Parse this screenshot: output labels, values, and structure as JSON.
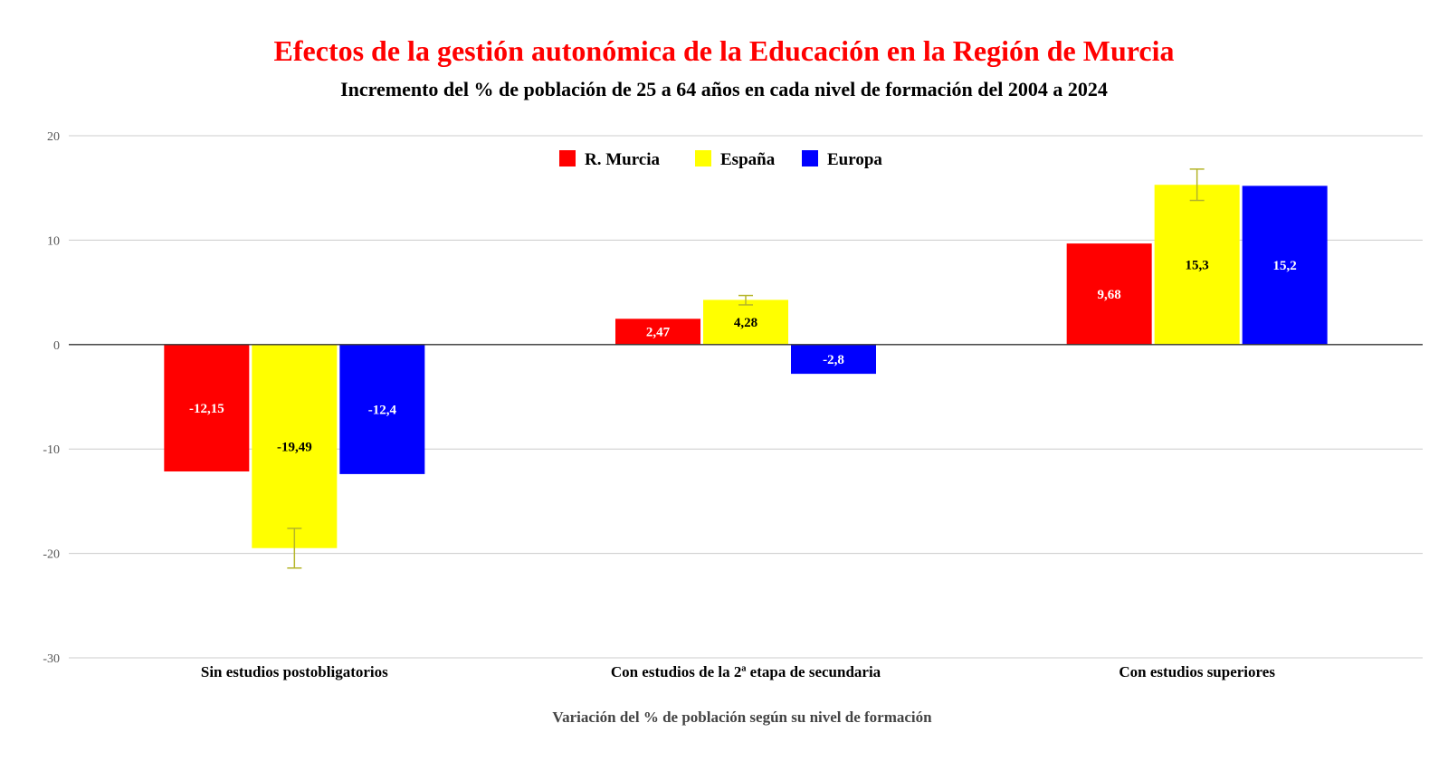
{
  "chart_data": {
    "type": "bar",
    "title": "Efectos de la gestión autonómica de la Educación en la Región de Murcia",
    "subtitle": "Incremento del % de población de 25 a 64 años en cada nivel de formación del 2004 a 2024",
    "xlabel": "Variación del % de población según su nivel de formación",
    "ylabel": "",
    "ylim": [
      -30,
      20
    ],
    "yticks": [
      20,
      10,
      0,
      -10,
      -20,
      -30
    ],
    "grid": true,
    "legend_position": "top-center",
    "categories": [
      "Sin estudios postobligatorios",
      "Con estudios de la 2ª etapa de secundaria",
      "Con estudios superiores"
    ],
    "series": [
      {
        "name": "R. Murcia",
        "color": "#ff0000",
        "label_color": "#ffffff",
        "values": [
          -12.15,
          2.47,
          9.68
        ],
        "labels": [
          "-12,15",
          "2,47",
          "9,68"
        ]
      },
      {
        "name": "España",
        "color": "#ffff00",
        "label_color": "#000000",
        "values": [
          -19.49,
          4.28,
          15.3
        ],
        "labels": [
          "-19,49",
          "4,28",
          "15,3"
        ],
        "error_bars": [
          [
            -21.4,
            -17.6
          ],
          [
            3.8,
            4.7
          ],
          [
            13.8,
            16.8
          ]
        ]
      },
      {
        "name": "Europa",
        "color": "#0000ff",
        "label_color": "#ffffff",
        "values": [
          -12.4,
          -2.8,
          15.2
        ],
        "labels": [
          "-12,4",
          "-2,8",
          "15,2"
        ]
      }
    ]
  }
}
